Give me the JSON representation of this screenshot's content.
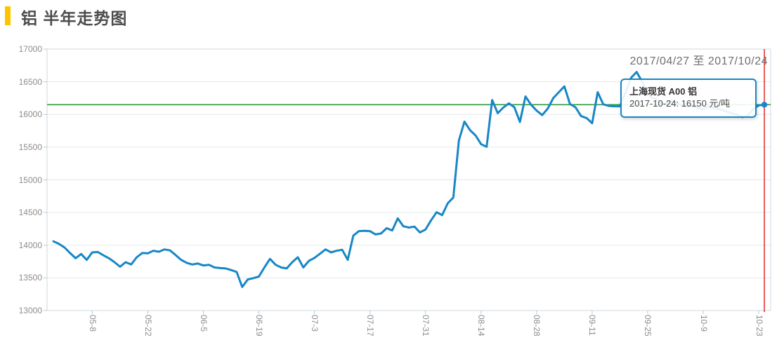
{
  "header": {
    "title": "铝 半年走势图",
    "date_range": "2017/04/27 至 2017/10/24"
  },
  "tooltip": {
    "series": "上海现货 A00 铝",
    "value_line": "2017-10-24: 16150 元/吨"
  },
  "colors": {
    "accent": "#ffc400",
    "line": "#1787c7",
    "reference_line": "#2f9e3f",
    "cursor_line": "#ea3333",
    "grid": "#e4e7ea",
    "border": "#ccd8e0",
    "tick": "#b9c8d2",
    "axis_text": "#8c8c8c"
  },
  "chart_data": {
    "type": "line",
    "title": "铝 半年走势图",
    "series_name": "上海现货 A00 铝",
    "unit": "元/吨",
    "ylabel": "",
    "xlabel": "",
    "ylim": [
      13000,
      17000
    ],
    "y_ticks": [
      13000,
      13500,
      14000,
      14500,
      15000,
      15500,
      16000,
      16500,
      17000
    ],
    "grid": true,
    "reference_line_value": 16150,
    "cursor_date": "2017-10-24",
    "last_value": 16150,
    "x_ticks": [
      {
        "label": "05-8",
        "index": 7
      },
      {
        "label": "05-22",
        "index": 17
      },
      {
        "label": "06-5",
        "index": 27
      },
      {
        "label": "06-19",
        "index": 37
      },
      {
        "label": "07-3",
        "index": 47
      },
      {
        "label": "07-17",
        "index": 57
      },
      {
        "label": "07-31",
        "index": 67
      },
      {
        "label": "08-14",
        "index": 77
      },
      {
        "label": "08-28",
        "index": 87
      },
      {
        "label": "09-11",
        "index": 97
      },
      {
        "label": "09-25",
        "index": 107
      },
      {
        "label": "10-9",
        "index": 117
      },
      {
        "label": "10-23",
        "index": 127
      }
    ],
    "x": [
      "2017-04-27",
      "2017-04-28",
      "2017-05-01",
      "2017-05-02",
      "2017-05-03",
      "2017-05-04",
      "2017-05-05",
      "2017-05-08",
      "2017-05-09",
      "2017-05-10",
      "2017-05-11",
      "2017-05-12",
      "2017-05-15",
      "2017-05-16",
      "2017-05-17",
      "2017-05-18",
      "2017-05-19",
      "2017-05-22",
      "2017-05-23",
      "2017-05-24",
      "2017-05-25",
      "2017-05-26",
      "2017-05-29",
      "2017-05-30",
      "2017-05-31",
      "2017-06-01",
      "2017-06-02",
      "2017-06-05",
      "2017-06-06",
      "2017-06-07",
      "2017-06-08",
      "2017-06-09",
      "2017-06-12",
      "2017-06-13",
      "2017-06-14",
      "2017-06-15",
      "2017-06-16",
      "2017-06-19",
      "2017-06-20",
      "2017-06-21",
      "2017-06-22",
      "2017-06-23",
      "2017-06-26",
      "2017-06-27",
      "2017-06-28",
      "2017-06-29",
      "2017-06-30",
      "2017-07-03",
      "2017-07-04",
      "2017-07-05",
      "2017-07-06",
      "2017-07-07",
      "2017-07-10",
      "2017-07-11",
      "2017-07-12",
      "2017-07-13",
      "2017-07-14",
      "2017-07-17",
      "2017-07-18",
      "2017-07-19",
      "2017-07-20",
      "2017-07-21",
      "2017-07-24",
      "2017-07-25",
      "2017-07-26",
      "2017-07-27",
      "2017-07-28",
      "2017-07-31",
      "2017-08-01",
      "2017-08-02",
      "2017-08-03",
      "2017-08-04",
      "2017-08-07",
      "2017-08-08",
      "2017-08-09",
      "2017-08-10",
      "2017-08-11",
      "2017-08-14",
      "2017-08-15",
      "2017-08-16",
      "2017-08-17",
      "2017-08-18",
      "2017-08-21",
      "2017-08-22",
      "2017-08-23",
      "2017-08-24",
      "2017-08-25",
      "2017-08-28",
      "2017-08-29",
      "2017-08-30",
      "2017-08-31",
      "2017-09-01",
      "2017-09-04",
      "2017-09-05",
      "2017-09-06",
      "2017-09-07",
      "2017-09-08",
      "2017-09-11",
      "2017-09-12",
      "2017-09-13",
      "2017-09-14",
      "2017-09-15",
      "2017-09-18",
      "2017-09-19",
      "2017-09-20",
      "2017-09-21",
      "2017-09-22",
      "2017-09-25",
      "2017-09-26",
      "2017-09-27",
      "2017-09-28",
      "2017-09-29",
      "2017-10-02",
      "2017-10-03",
      "2017-10-04",
      "2017-10-05",
      "2017-10-06",
      "2017-10-09",
      "2017-10-10",
      "2017-10-11",
      "2017-10-12",
      "2017-10-13",
      "2017-10-16",
      "2017-10-17",
      "2017-10-18",
      "2017-10-19",
      "2017-10-20",
      "2017-10-23",
      "2017-10-24"
    ],
    "values": [
      14060,
      14020,
      13965,
      13880,
      13800,
      13865,
      13775,
      13890,
      13895,
      13845,
      13800,
      13740,
      13670,
      13740,
      13705,
      13815,
      13880,
      13875,
      13915,
      13900,
      13935,
      13920,
      13850,
      13775,
      13730,
      13705,
      13720,
      13690,
      13700,
      13660,
      13650,
      13645,
      13620,
      13590,
      13360,
      13475,
      13495,
      13520,
      13660,
      13790,
      13700,
      13660,
      13645,
      13740,
      13815,
      13660,
      13760,
      13805,
      13870,
      13935,
      13890,
      13915,
      13930,
      13775,
      14145,
      14215,
      14220,
      14215,
      14165,
      14180,
      14260,
      14225,
      14410,
      14290,
      14270,
      14285,
      14195,
      14240,
      14380,
      14505,
      14460,
      14640,
      14730,
      15600,
      15890,
      15760,
      15680,
      15545,
      15505,
      16220,
      16020,
      16105,
      16170,
      16110,
      15885,
      16275,
      16150,
      16060,
      15990,
      16090,
      16250,
      16340,
      16430,
      16160,
      16110,
      15975,
      15945,
      15865,
      16340,
      16155,
      16130,
      16125,
      16125,
      16330,
      16560,
      16650,
      16500,
      16300,
      16250,
      16200,
      16150,
      16200,
      16180,
      16150,
      16120,
      16150,
      16100,
      16080,
      16120,
      16100,
      16080,
      16050,
      16020,
      16000,
      15960,
      15980,
      16080,
      16140,
      16150
    ]
  }
}
